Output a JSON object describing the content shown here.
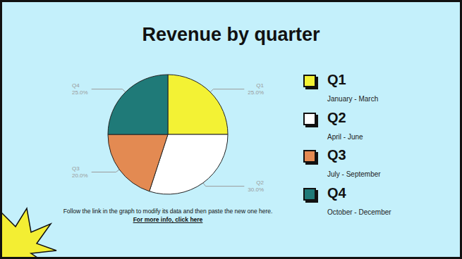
{
  "chart_data": {
    "type": "pie",
    "title": "Revenue by quarter",
    "categories": [
      "Q1",
      "Q2",
      "Q3",
      "Q4"
    ],
    "values": [
      25,
      30,
      20,
      25
    ],
    "value_labels": [
      "25.0%",
      "30.0%",
      "20.0%",
      "25.0%"
    ],
    "colors": [
      "#f3f234",
      "#ffffff",
      "#e38a52",
      "#1f7a78"
    ],
    "data_labels": true
  },
  "periods": [
    "January - March",
    "April - June",
    "July - September",
    "October - December"
  ],
  "note": "Follow the link in the graph to modify its data and then paste the new one here.",
  "link": "For more info, click here"
}
